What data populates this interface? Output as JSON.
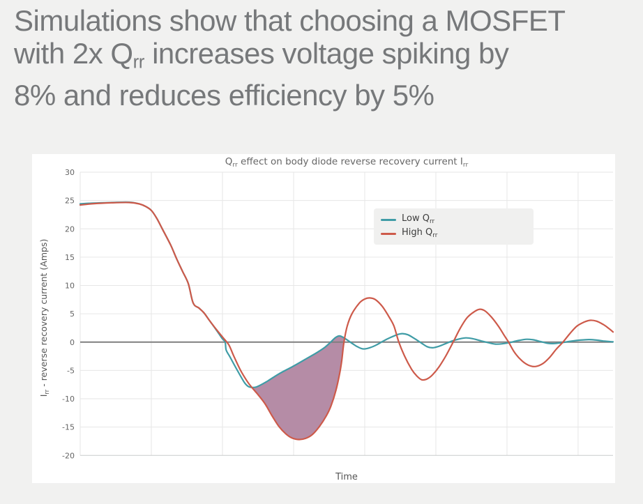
{
  "heading": {
    "line1": "Simulations show that choosing a MOSFET",
    "line2_pre": "with 2x Q",
    "line2_sub": "rr",
    "line2_post": " increases voltage spiking by",
    "line3": "8% and reduces efficiency by 5%"
  },
  "chart": {
    "title_parts": [
      "Q",
      "rr",
      " effect on body diode reverse recovery current I",
      "rr"
    ],
    "y_axis_title_pre": "I",
    "y_axis_title_sub": "rr",
    "y_axis_title_post": " - reverse recovery current (Amps)",
    "x_axis_title": "Time",
    "legend": [
      {
        "label_pre": "Low Q",
        "label_sub": "rr",
        "color": "#3f9ca6"
      },
      {
        "label_pre": "High Q",
        "label_sub": "rr",
        "color": "#cd5a4a"
      }
    ]
  },
  "colors": {
    "page_bg": "#f1f1f0",
    "card_bg": "#ffffff",
    "heading_text": "#76787a",
    "grid": "#e6e6e6",
    "axis_line": "#c9cccc",
    "zero_line": "#7f7f7f",
    "tick_text": "#646464",
    "title_text": "#666666",
    "legend_bg": "#f0f0ef",
    "shaded_fill": "#b58ca6"
  },
  "chart_data": {
    "type": "line",
    "title": "Qrr effect on body diode reverse recovery current Irr",
    "xlabel": "Time",
    "ylabel": "Irr - reverse recovery current (Amps)",
    "ylim": [
      -20,
      30
    ],
    "yticks": [
      30,
      25,
      20,
      15,
      10,
      5,
      0,
      -5,
      -10,
      -15,
      -20
    ],
    "x_axis": "unlabeled time axis, normalized 0-100",
    "x_gridlines": [
      0,
      13.35,
      26.7,
      40.05,
      53.4,
      66.75,
      80.1,
      93.45
    ],
    "grid": true,
    "legend_position": "upper-right inside plot",
    "zero_line": true,
    "series": [
      {
        "name": "Low Qrr",
        "color": "#3f9ca6",
        "points": [
          [
            0,
            24.4
          ],
          [
            2.6,
            24.55
          ],
          [
            5.9,
            24.65
          ],
          [
            9.2,
            24.7
          ],
          [
            11.1,
            24.4
          ],
          [
            12.4,
            23.9
          ],
          [
            13.4,
            23.2
          ],
          [
            14.4,
            21.8
          ],
          [
            15.4,
            20.0
          ],
          [
            17.0,
            17.1
          ],
          [
            18.1,
            14.7
          ],
          [
            19.2,
            12.5
          ],
          [
            20.3,
            10.3
          ],
          [
            21.2,
            6.9
          ],
          [
            22.3,
            6.0
          ],
          [
            23.2,
            5.2
          ],
          [
            24.2,
            3.9
          ],
          [
            25.5,
            2.2
          ],
          [
            26.6,
            0.7
          ],
          [
            27.2,
            0.0
          ],
          [
            27.4,
            -1.4
          ],
          [
            28.1,
            -2.6
          ],
          [
            29.5,
            -5.0
          ],
          [
            30.8,
            -7.1
          ],
          [
            31.5,
            -7.8
          ],
          [
            32.3,
            -8.0
          ],
          [
            33.1,
            -7.9
          ],
          [
            34.0,
            -7.5
          ],
          [
            35.3,
            -6.8
          ],
          [
            37.3,
            -5.6
          ],
          [
            39.9,
            -4.3
          ],
          [
            42.5,
            -2.9
          ],
          [
            44.5,
            -1.8
          ],
          [
            45.8,
            -1.0
          ],
          [
            47.0,
            0.0
          ],
          [
            47.9,
            0.8
          ],
          [
            48.7,
            1.1
          ],
          [
            49.6,
            0.7
          ],
          [
            51.0,
            -0.2
          ],
          [
            52.0,
            -0.8
          ],
          [
            53.1,
            -1.2
          ],
          [
            54.3,
            -1.0
          ],
          [
            55.6,
            -0.5
          ],
          [
            56.9,
            0.2
          ],
          [
            58.2,
            0.8
          ],
          [
            59.6,
            1.35
          ],
          [
            60.5,
            1.5
          ],
          [
            61.5,
            1.3
          ],
          [
            62.8,
            0.6
          ],
          [
            64.1,
            -0.2
          ],
          [
            65.1,
            -0.8
          ],
          [
            66.1,
            -1.0
          ],
          [
            67.1,
            -0.8
          ],
          [
            68.5,
            -0.3
          ],
          [
            69.8,
            0.2
          ],
          [
            71.1,
            0.55
          ],
          [
            72.4,
            0.75
          ],
          [
            73.7,
            0.6
          ],
          [
            75.3,
            0.2
          ],
          [
            76.6,
            -0.1
          ],
          [
            77.9,
            -0.35
          ],
          [
            79.2,
            -0.3
          ],
          [
            80.5,
            -0.1
          ],
          [
            82.1,
            0.25
          ],
          [
            83.8,
            0.5
          ],
          [
            85.1,
            0.4
          ],
          [
            86.4,
            0.1
          ],
          [
            87.7,
            -0.2
          ],
          [
            89.0,
            -0.25
          ],
          [
            90.3,
            -0.1
          ],
          [
            92.0,
            0.15
          ],
          [
            93.8,
            0.35
          ],
          [
            95.5,
            0.45
          ],
          [
            96.9,
            0.35
          ],
          [
            98.2,
            0.2
          ],
          [
            100,
            0.05
          ]
        ]
      },
      {
        "name": "High Qrr",
        "color": "#cd5a4a",
        "points": [
          [
            0,
            24.2
          ],
          [
            2.6,
            24.45
          ],
          [
            5.9,
            24.6
          ],
          [
            9.2,
            24.65
          ],
          [
            11.1,
            24.4
          ],
          [
            12.4,
            23.9
          ],
          [
            13.4,
            23.2
          ],
          [
            14.4,
            21.8
          ],
          [
            15.4,
            20.0
          ],
          [
            17.0,
            17.1
          ],
          [
            18.1,
            14.7
          ],
          [
            19.2,
            12.5
          ],
          [
            20.3,
            10.3
          ],
          [
            21.2,
            6.9
          ],
          [
            22.3,
            6.0
          ],
          [
            23.2,
            5.2
          ],
          [
            24.2,
            3.9
          ],
          [
            25.5,
            2.3
          ],
          [
            26.8,
            0.8
          ],
          [
            27.9,
            -0.5
          ],
          [
            28.8,
            -2.4
          ],
          [
            30.1,
            -5.0
          ],
          [
            31.4,
            -7.0
          ],
          [
            32.3,
            -8.1
          ],
          [
            33.4,
            -9.3
          ],
          [
            34.7,
            -10.9
          ],
          [
            36.0,
            -13.0
          ],
          [
            37.3,
            -14.9
          ],
          [
            38.6,
            -16.2
          ],
          [
            39.7,
            -16.9
          ],
          [
            41.0,
            -17.2
          ],
          [
            42.3,
            -17.0
          ],
          [
            43.6,
            -16.3
          ],
          [
            44.9,
            -14.9
          ],
          [
            46.2,
            -13.0
          ],
          [
            47.1,
            -11.2
          ],
          [
            48.0,
            -8.5
          ],
          [
            48.7,
            -5.5
          ],
          [
            49.1,
            -3.2
          ],
          [
            49.5,
            0.0
          ],
          [
            50.1,
            2.8
          ],
          [
            51.0,
            5.0
          ],
          [
            52.4,
            6.9
          ],
          [
            53.4,
            7.6
          ],
          [
            54.3,
            7.8
          ],
          [
            55.4,
            7.5
          ],
          [
            56.7,
            6.3
          ],
          [
            58.0,
            4.4
          ],
          [
            58.9,
            2.8
          ],
          [
            59.8,
            0.0
          ],
          [
            60.9,
            -2.5
          ],
          [
            62.2,
            -4.8
          ],
          [
            63.2,
            -6.0
          ],
          [
            64.1,
            -6.65
          ],
          [
            65.1,
            -6.5
          ],
          [
            66.1,
            -5.8
          ],
          [
            67.4,
            -4.3
          ],
          [
            68.7,
            -2.3
          ],
          [
            70.0,
            0.0
          ],
          [
            71.3,
            2.4
          ],
          [
            72.6,
            4.3
          ],
          [
            74.0,
            5.4
          ],
          [
            75.0,
            5.8
          ],
          [
            76.0,
            5.5
          ],
          [
            77.2,
            4.4
          ],
          [
            78.5,
            2.8
          ],
          [
            79.5,
            1.3
          ],
          [
            80.4,
            0.0
          ],
          [
            81.5,
            -1.8
          ],
          [
            82.9,
            -3.3
          ],
          [
            84.2,
            -4.1
          ],
          [
            85.5,
            -4.3
          ],
          [
            86.8,
            -3.8
          ],
          [
            88.1,
            -2.7
          ],
          [
            89.3,
            -1.3
          ],
          [
            90.6,
            0.0
          ],
          [
            91.9,
            1.5
          ],
          [
            93.2,
            2.8
          ],
          [
            94.5,
            3.5
          ],
          [
            95.7,
            3.85
          ],
          [
            96.9,
            3.7
          ],
          [
            98.2,
            3.1
          ],
          [
            99.1,
            2.5
          ],
          [
            100,
            1.8
          ]
        ]
      }
    ],
    "shaded_region": {
      "between": [
        "Low Qrr",
        "High Qrr"
      ],
      "t_range": [
        32.3,
        49.6
      ],
      "color": "#b58ca6",
      "meaning": "extra reverse recovery charge of the High Qrr MOSFET"
    }
  }
}
